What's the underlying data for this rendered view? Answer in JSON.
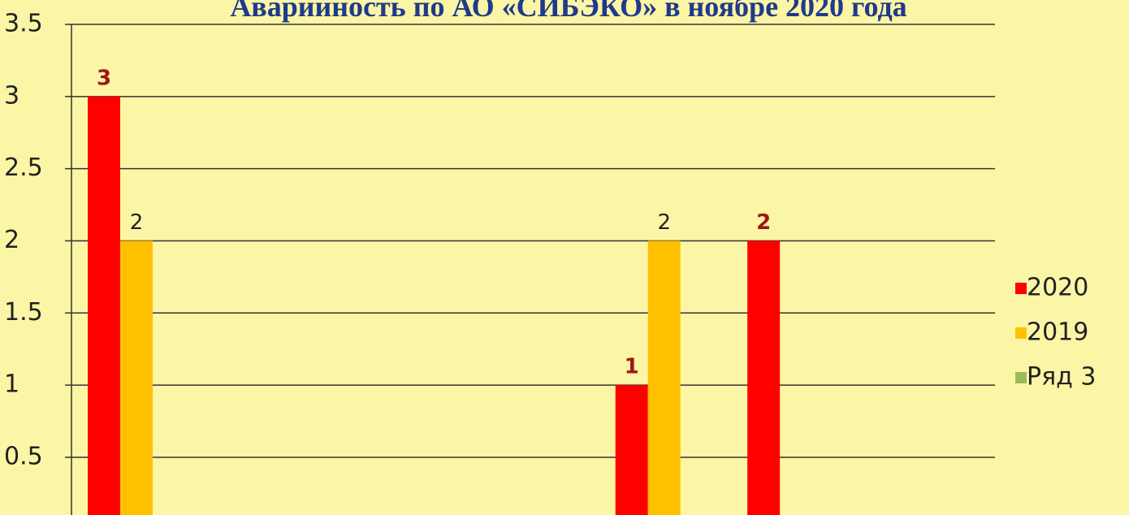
{
  "chart_data": {
    "type": "bar",
    "title": "Аварийность по АО «СИБЭКО» в ноябре 2020 года",
    "categories": [
      null,
      null,
      null,
      null,
      null,
      null,
      null
    ],
    "series": [
      {
        "name": "2020",
        "color": "#ff0000",
        "values": [
          3,
          null,
          null,
          null,
          1,
          2,
          null
        ]
      },
      {
        "name": "2019",
        "color": "#ffc000",
        "values": [
          2,
          null,
          null,
          null,
          2,
          null,
          null
        ]
      },
      {
        "name": "Ряд 3",
        "color": "#9bbb59",
        "values": [
          null,
          null,
          null,
          null,
          null,
          null,
          null
        ]
      }
    ],
    "ylim": [
      0.1,
      3.5
    ],
    "yticks": [
      0.5,
      1,
      1.5,
      2,
      2.5,
      3,
      3.5
    ],
    "grid": true,
    "legend": "right"
  }
}
